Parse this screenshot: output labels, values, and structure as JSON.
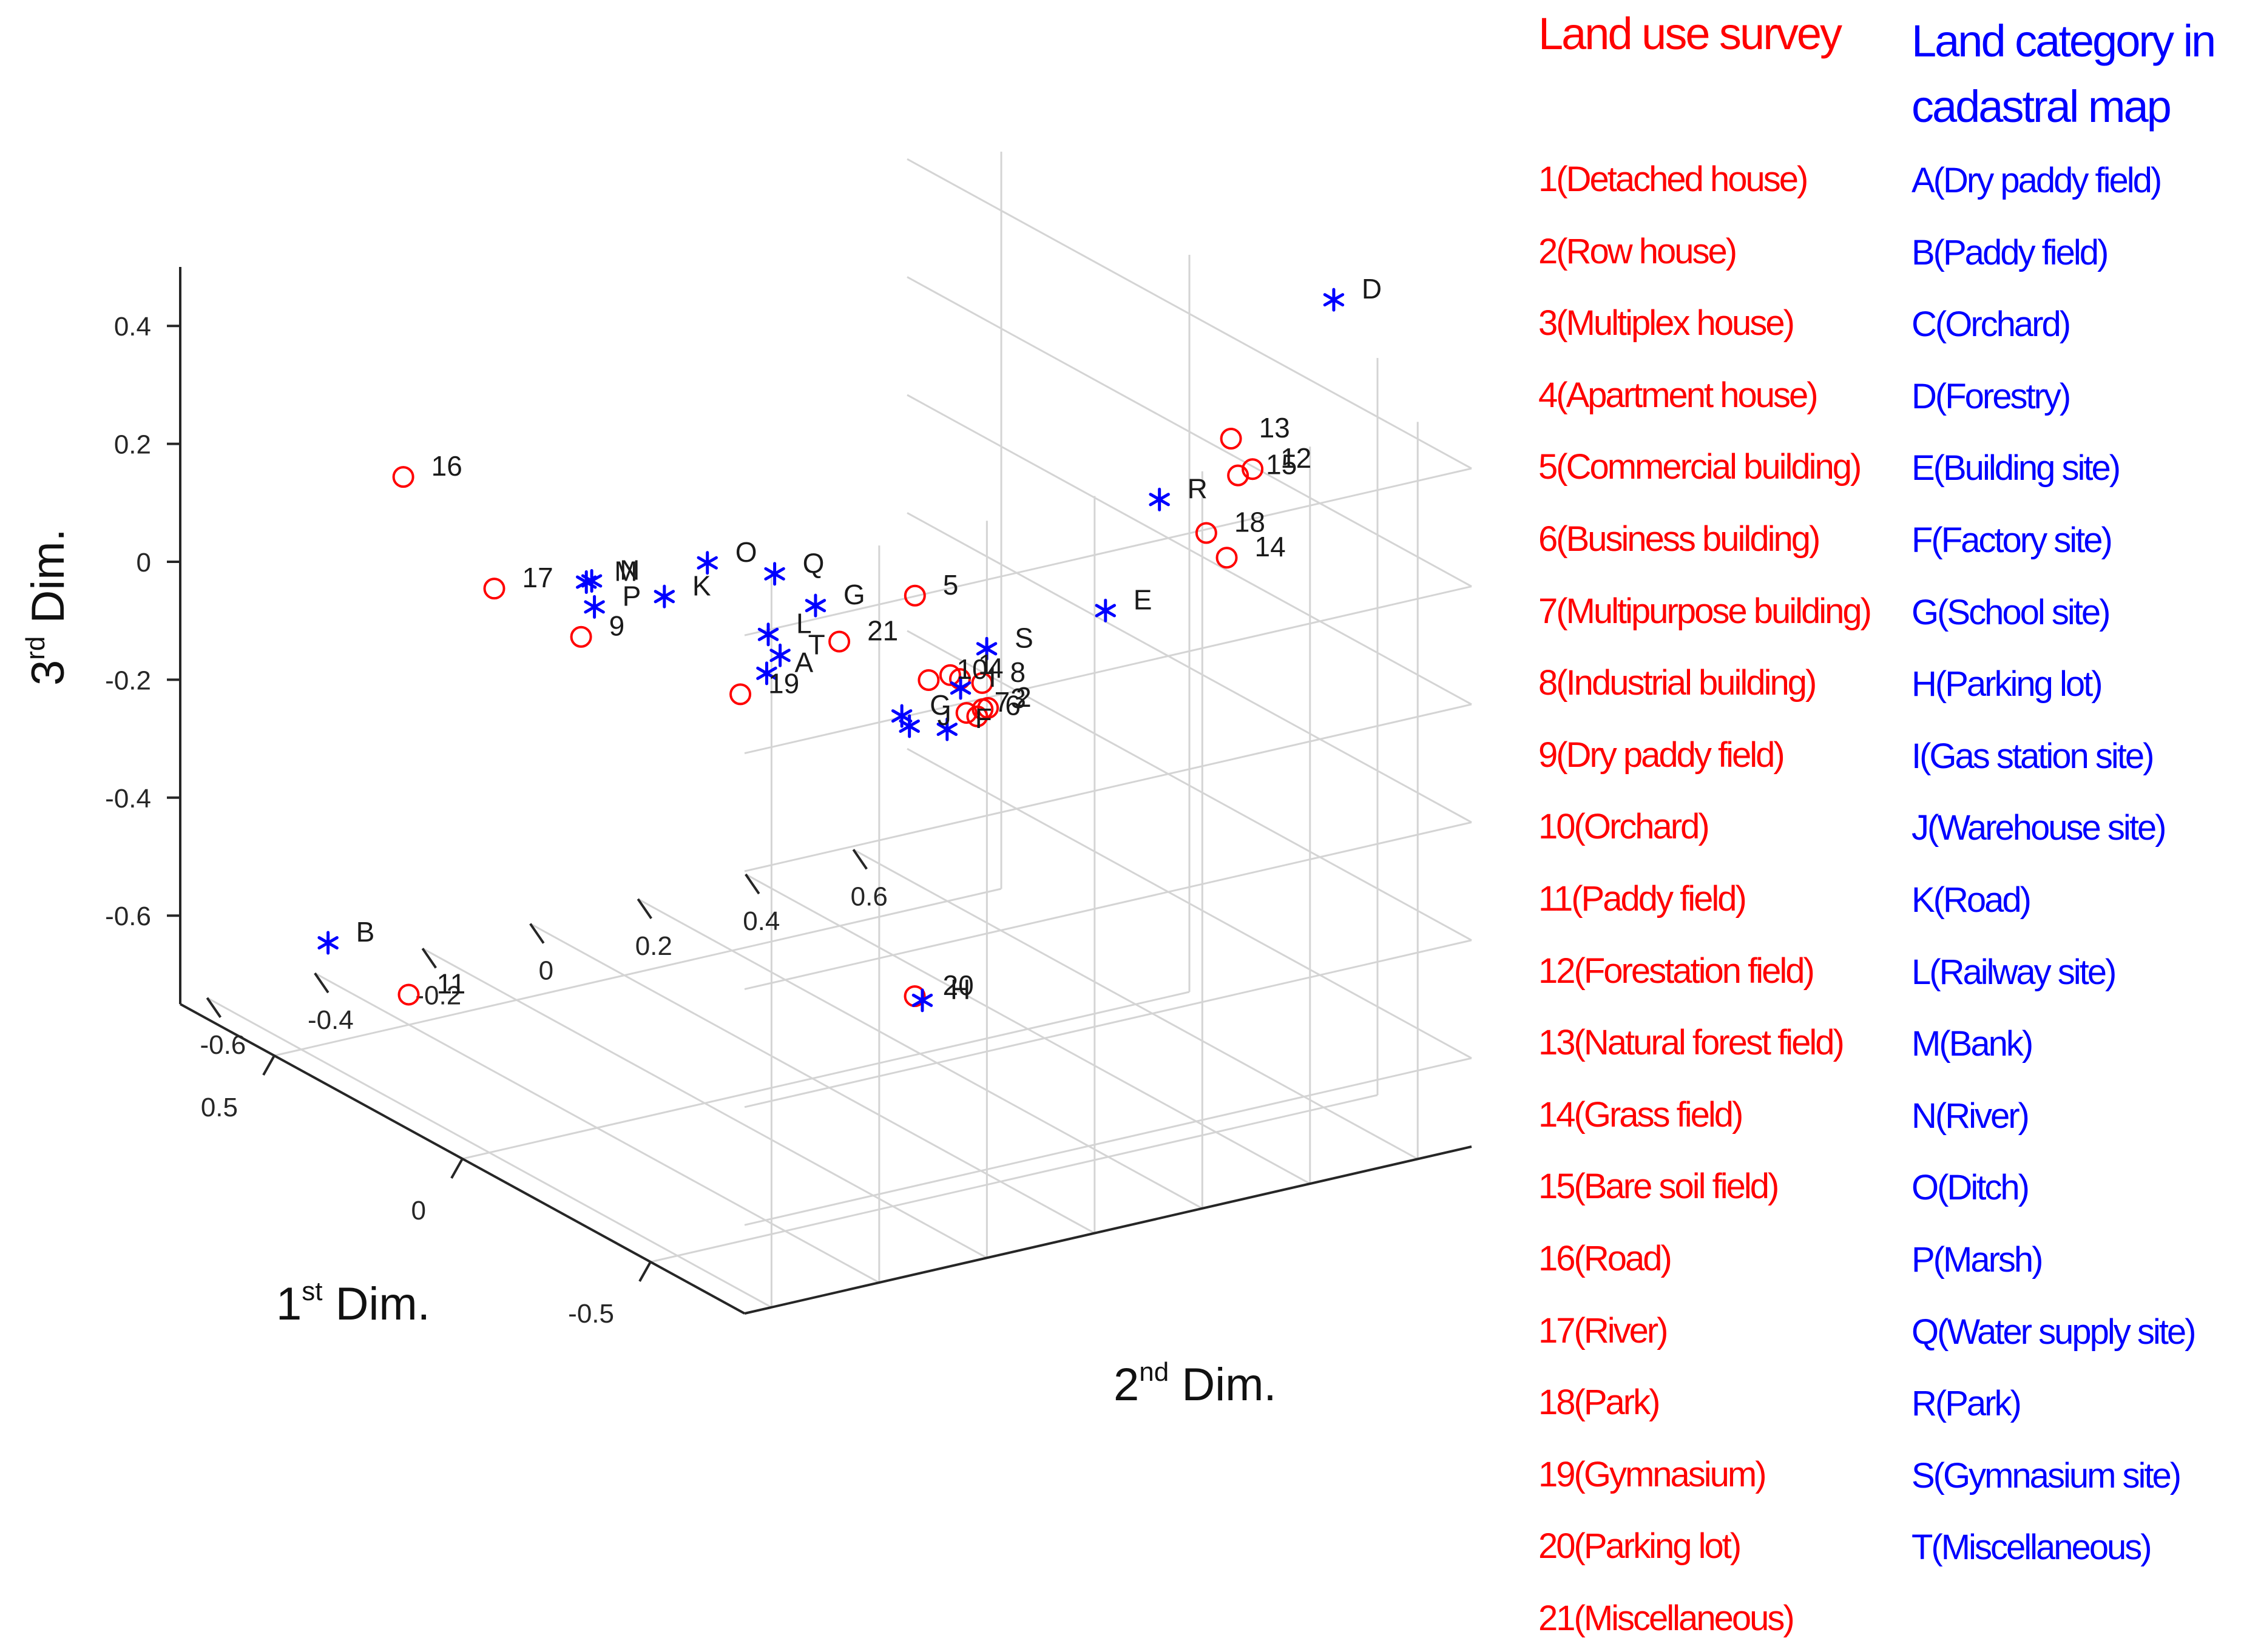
{
  "colors": {
    "survey": "#ff0000",
    "cadastral": "#0000ff",
    "grid": "#d4d4d4",
    "axis": "#262626"
  },
  "chart_data": {
    "type": "scatter",
    "subtype": "3d",
    "xlabel": "1st Dim.",
    "ylabel": "2nd Dim.",
    "zlabel": "3rd Dim.",
    "xlim": [
      -0.75,
      0.75
    ],
    "ylim": [
      -0.65,
      0.7
    ],
    "zlim": [
      -0.75,
      0.5
    ],
    "xticks": [
      "-0.5",
      "0",
      "0.5"
    ],
    "yticks": [
      "-0.6",
      "-0.4",
      "-0.2",
      "0",
      "0.2",
      "0.4",
      "0.6"
    ],
    "zticks": [
      "-0.6",
      "-0.4",
      "-0.2",
      "0",
      "0.2",
      "0.4"
    ],
    "grid": true,
    "series": [
      {
        "name": "Land use survey",
        "marker": "circle",
        "color": "#ff0000",
        "points": [
          {
            "label": "1",
            "x": -0.08,
            "y": 0.2,
            "z": -0.08
          },
          {
            "label": "2",
            "x": 0.02,
            "y": 0.34,
            "z": -0.2
          },
          {
            "label": "3",
            "x": 0.02,
            "y": 0.33,
            "z": -0.2
          },
          {
            "label": "4",
            "x": -0.02,
            "y": 0.26,
            "z": -0.12
          },
          {
            "label": "5",
            "x": 0.3,
            "y": 0.4,
            "z": -0.12
          },
          {
            "label": "6",
            "x": 0.02,
            "y": 0.32,
            "z": -0.21
          },
          {
            "label": "7",
            "x": 0.02,
            "y": 0.3,
            "z": -0.2
          },
          {
            "label": "8",
            "x": 0.15,
            "y": 0.42,
            "z": -0.22
          },
          {
            "label": "9",
            "x": 0.3,
            "y": -0.22,
            "z": -0.06
          },
          {
            "label": "10",
            "x": -0.08,
            "y": 0.16,
            "z": -0.08
          },
          {
            "label": "11",
            "x": 0.2,
            "y": -0.61,
            "z": -0.55
          },
          {
            "label": "12",
            "x": -0.54,
            "y": 0.44,
            "z": 0.38
          },
          {
            "label": "13",
            "x": -0.54,
            "y": 0.4,
            "z": 0.44
          },
          {
            "label": "14",
            "x": -0.5,
            "y": 0.42,
            "z": 0.22
          },
          {
            "label": "15",
            "x": -0.53,
            "y": 0.42,
            "z": 0.37
          },
          {
            "label": "16",
            "x": 0.2,
            "y": -0.62,
            "z": 0.33
          },
          {
            "label": "17",
            "x": 0.13,
            "y": -0.5,
            "z": 0.14
          },
          {
            "label": "18",
            "x": -0.46,
            "y": 0.41,
            "z": 0.25
          },
          {
            "label": "19",
            "x": 0.12,
            "y": -0.05,
            "z": -0.13
          },
          {
            "label": "20",
            "x": 0.1,
            "y": 0.26,
            "z": -0.7
          },
          {
            "label": "21",
            "x": -0.1,
            "y": -0.02,
            "z": 0.03
          }
        ]
      },
      {
        "name": "Land category in cadastral map",
        "marker": "asterisk",
        "color": "#0000ff",
        "points": [
          {
            "label": "A",
            "x": 0.05,
            "y": -0.05,
            "z": -0.07
          },
          {
            "label": "B",
            "x": 0.4,
            "y": -0.62,
            "z": -0.53
          },
          {
            "label": "C",
            "x": 0.02,
            "y": 0.18,
            "z": -0.18
          },
          {
            "label": "D",
            "x": -0.67,
            "y": 0.5,
            "z": 0.7
          },
          {
            "label": "E",
            "x": 0.18,
            "y": 0.67,
            "z": -0.16
          },
          {
            "label": "F",
            "x": 0.1,
            "y": 0.32,
            "z": -0.26
          },
          {
            "label": "G",
            "x": -0.18,
            "y": -0.12,
            "z": 0.14
          },
          {
            "label": "H",
            "x": 0.08,
            "y": 0.26,
            "z": -0.7
          },
          {
            "label": "I",
            "x": 0.15,
            "y": 0.38,
            "z": -0.22
          },
          {
            "label": "J",
            "x": 0.1,
            "y": 0.25,
            "z": -0.24
          },
          {
            "label": "K",
            "x": 0.05,
            "y": -0.24,
            "z": 0.1
          },
          {
            "label": "L",
            "x": -0.04,
            "y": -0.11,
            "z": 0.04
          },
          {
            "label": "M",
            "x": 0.1,
            "y": -0.35,
            "z": 0.13
          },
          {
            "label": "N",
            "x": 0.1,
            "y": -0.34,
            "z": 0.13
          },
          {
            "label": "O",
            "x": -0.05,
            "y": -0.23,
            "z": 0.19
          },
          {
            "label": "P",
            "x": 0.15,
            "y": -0.3,
            "z": 0.06
          },
          {
            "label": "Q",
            "x": -0.1,
            "y": -0.14,
            "z": 0.17
          },
          {
            "label": "R",
            "x": -0.45,
            "y": 0.33,
            "z": 0.32
          },
          {
            "label": "S",
            "x": -0.22,
            "y": 0.17,
            "z": 0.02
          },
          {
            "label": "T",
            "x": 0.0,
            "y": -0.06,
            "z": -0.02
          }
        ]
      }
    ]
  },
  "legend": {
    "survey": {
      "title_line1": "Land use survey",
      "items": [
        "1(Detached house)",
        "2(Row house)",
        "3(Multiplex house)",
        "4(Apartment house)",
        "5(Commercial building)",
        "6(Business building)",
        "7(Multipurpose building)",
        "8(Industrial building)",
        "9(Dry paddy field)",
        "10(Orchard)",
        "11(Paddy field)",
        "12(Forestation field)",
        "13(Natural forest field)",
        "14(Grass field)",
        "15(Bare soil field)",
        "16(Road)",
        "17(River)",
        "18(Park)",
        "19(Gymnasium)",
        "20(Parking lot)",
        "21(Miscellaneous)"
      ]
    },
    "cadastral": {
      "title_line1": "Land category in",
      "title_line2": "cadastral map",
      "items": [
        "A(Dry paddy field)",
        "B(Paddy field)",
        "C(Orchard)",
        "D(Forestry)",
        "E(Building site)",
        "F(Factory site)",
        "G(School site)",
        "H(Parking lot)",
        "I(Gas station site)",
        "J(Warehouse site)",
        "K(Road)",
        "L(Railway site)",
        "M(Bank)",
        "N(River)",
        "O(Ditch)",
        "P(Marsh)",
        "Q(Water supply site)",
        "R(Park)",
        "S(Gymnasium site)",
        "T(Miscellaneous)"
      ]
    }
  }
}
